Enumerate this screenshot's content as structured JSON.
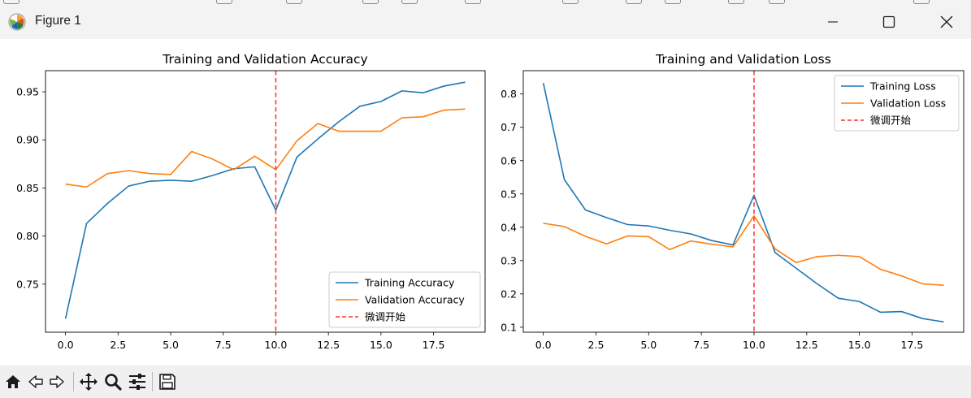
{
  "window": {
    "title": "Figure 1"
  },
  "toolbar": {
    "buttons": [
      "home-icon",
      "back-icon",
      "forward-icon",
      "pan-icon",
      "zoom-icon",
      "configure-subplots-icon",
      "save-icon"
    ]
  },
  "colors": {
    "training": "#1f77b4",
    "validation": "#ff7f0e",
    "marker": "#ff2d2d"
  },
  "chart_data": [
    {
      "type": "line",
      "title": "Training and Validation Accuracy",
      "xlabel": "",
      "ylabel": "",
      "xlim": [
        -0.95,
        19.95
      ],
      "ylim": [
        0.7,
        0.972
      ],
      "xticks": [
        0.0,
        2.5,
        5.0,
        7.5,
        10.0,
        12.5,
        15.0,
        17.5
      ],
      "xtick_labels": [
        "0.0",
        "2.5",
        "5.0",
        "7.5",
        "10.0",
        "12.5",
        "15.0",
        "17.5"
      ],
      "yticks": [
        0.75,
        0.8,
        0.85,
        0.9,
        0.95
      ],
      "ytick_labels": [
        "0.75",
        "0.80",
        "0.85",
        "0.90",
        "0.95"
      ],
      "x": [
        0,
        1,
        2,
        3,
        4,
        5,
        6,
        7,
        8,
        9,
        10,
        11,
        12,
        13,
        14,
        15,
        16,
        17,
        18,
        19
      ],
      "series": [
        {
          "name": "Training Accuracy",
          "color": "#1f77b4",
          "dash": "solid",
          "values": [
            0.714,
            0.813,
            0.834,
            0.852,
            0.857,
            0.858,
            0.857,
            0.863,
            0.87,
            0.872,
            0.827,
            0.882,
            0.901,
            0.919,
            0.935,
            0.94,
            0.951,
            0.949,
            0.956,
            0.96
          ]
        },
        {
          "name": "Validation Accuracy",
          "color": "#ff7f0e",
          "dash": "solid",
          "values": [
            0.854,
            0.851,
            0.865,
            0.868,
            0.865,
            0.864,
            0.888,
            0.88,
            0.869,
            0.883,
            0.869,
            0.899,
            0.917,
            0.909,
            0.909,
            0.909,
            0.923,
            0.924,
            0.931,
            0.932
          ]
        }
      ],
      "vline": {
        "x": 10,
        "label": "微调开始",
        "color": "#ff2d2d",
        "dash": "dashed"
      },
      "legend": {
        "position": "lower-right",
        "entries": [
          "Training Accuracy",
          "Validation Accuracy",
          "微调开始"
        ]
      }
    },
    {
      "type": "line",
      "title": "Training and Validation Loss",
      "xlabel": "",
      "ylabel": "",
      "xlim": [
        -0.95,
        19.95
      ],
      "ylim": [
        0.085,
        0.87
      ],
      "xticks": [
        0.0,
        2.5,
        5.0,
        7.5,
        10.0,
        12.5,
        15.0,
        17.5
      ],
      "xtick_labels": [
        "0.0",
        "2.5",
        "5.0",
        "7.5",
        "10.0",
        "12.5",
        "15.0",
        "17.5"
      ],
      "yticks": [
        0.1,
        0.2,
        0.3,
        0.4,
        0.5,
        0.6,
        0.7,
        0.8
      ],
      "ytick_labels": [
        "0.1",
        "0.2",
        "0.3",
        "0.4",
        "0.5",
        "0.6",
        "0.7",
        "0.8"
      ],
      "x": [
        0,
        1,
        2,
        3,
        4,
        5,
        6,
        7,
        8,
        9,
        10,
        11,
        12,
        13,
        14,
        15,
        16,
        17,
        18,
        19
      ],
      "series": [
        {
          "name": "Training Loss",
          "color": "#1f77b4",
          "dash": "solid",
          "values": [
            0.833,
            0.543,
            0.452,
            0.429,
            0.408,
            0.404,
            0.391,
            0.38,
            0.36,
            0.347,
            0.496,
            0.324,
            0.277,
            0.23,
            0.187,
            0.177,
            0.145,
            0.147,
            0.126,
            0.116
          ]
        },
        {
          "name": "Validation Loss",
          "color": "#ff7f0e",
          "dash": "solid",
          "values": [
            0.412,
            0.402,
            0.373,
            0.35,
            0.374,
            0.372,
            0.333,
            0.359,
            0.349,
            0.341,
            0.434,
            0.335,
            0.294,
            0.312,
            0.316,
            0.312,
            0.274,
            0.254,
            0.23,
            0.226
          ]
        }
      ],
      "vline": {
        "x": 10,
        "label": "微调开始",
        "color": "#ff2d2d",
        "dash": "dashed"
      },
      "legend": {
        "position": "upper-right",
        "entries": [
          "Training Loss",
          "Validation Loss",
          "微调开始"
        ]
      }
    }
  ]
}
